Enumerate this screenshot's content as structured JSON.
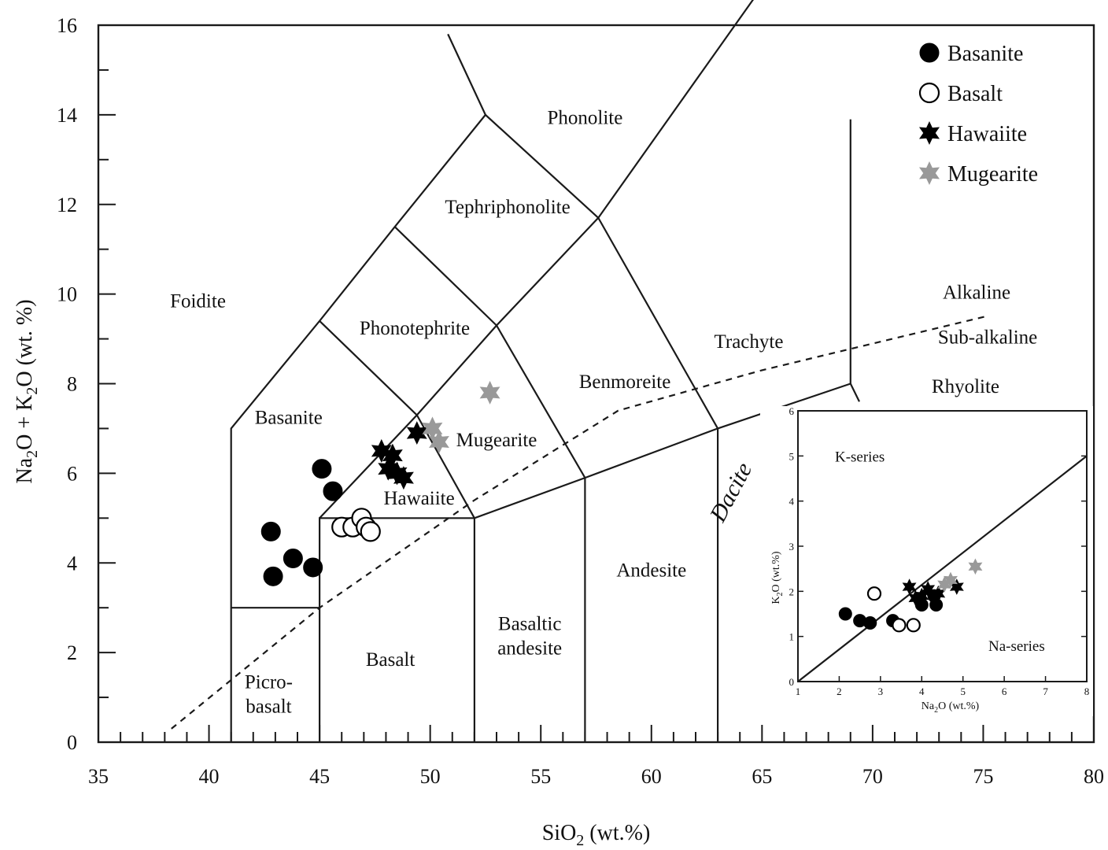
{
  "chart_data": [
    {
      "type": "scatter",
      "title": "",
      "xlabel": "SiO",
      "xlabel_sub": "2",
      "xlabel_unit": " (wt.%)",
      "ylabel_parts": [
        "Na",
        "2",
        "O + K",
        "2",
        "O (wt. %)"
      ],
      "xlim": [
        35,
        80
      ],
      "ylim": [
        0,
        16
      ],
      "x_ticks": [
        35,
        40,
        45,
        50,
        55,
        60,
        65,
        70,
        75,
        80
      ],
      "y_ticks": [
        0,
        2,
        4,
        6,
        8,
        10,
        12,
        14,
        16
      ],
      "grid": false,
      "legend_position": "top-right",
      "fields": [
        {
          "key": "foidite",
          "lines": [
            "Foidite"
          ],
          "x": 39.5,
          "y": 9.7
        },
        {
          "key": "basanite",
          "lines": [
            "Basanite"
          ],
          "x": 43.6,
          "y": 7.1
        },
        {
          "key": "phonotephrite",
          "lines": [
            "Phonotephrite"
          ],
          "x": 49.3,
          "y": 9.1
        },
        {
          "key": "tephriphonolite",
          "lines": [
            "Tephriphonolite"
          ],
          "x": 53.5,
          "y": 11.8
        },
        {
          "key": "phonolite",
          "lines": [
            "Phonolite"
          ],
          "x": 57.0,
          "y": 13.8
        },
        {
          "key": "benmoreite",
          "lines": [
            "Benmoreite"
          ],
          "x": 58.8,
          "y": 7.9
        },
        {
          "key": "trachyte",
          "lines": [
            "Trachyte"
          ],
          "x": 64.4,
          "y": 8.8
        },
        {
          "key": "mugearite",
          "lines": [
            "Mugearite"
          ],
          "x": 53.0,
          "y": 6.6
        },
        {
          "key": "hawaiite",
          "lines": [
            "Hawaiite"
          ],
          "x": 49.5,
          "y": 5.3
        },
        {
          "key": "picrobasalt",
          "lines": [
            "Picro-",
            "basalt"
          ],
          "x": 42.7,
          "y": 1.2
        },
        {
          "key": "basalt",
          "lines": [
            "Basalt"
          ],
          "x": 48.2,
          "y": 1.7
        },
        {
          "key": "basaltic_andesite",
          "lines": [
            "Basaltic",
            "andesite"
          ],
          "x": 54.5,
          "y": 2.5
        },
        {
          "key": "andesite",
          "lines": [
            "Andesite"
          ],
          "x": 60.0,
          "y": 3.7
        },
        {
          "key": "rhyolite",
          "lines": [
            "Rhyolite"
          ],
          "x": 74.2,
          "y": 7.8
        },
        {
          "key": "alkaline",
          "lines": [
            "Alkaline"
          ],
          "x": 74.7,
          "y": 9.9
        },
        {
          "key": "subalkaline",
          "lines": [
            "Sub-alkaline"
          ],
          "x": 75.2,
          "y": 8.9
        }
      ],
      "dacite_label": {
        "text": "Dacite",
        "x": 63.9,
        "y": 5.5
      },
      "boundaries": [
        [
          [
            41,
            0
          ],
          [
            41,
            7
          ],
          [
            45,
            9.4
          ],
          [
            48.4,
            11.5
          ],
          [
            52.5,
            14
          ],
          [
            57.6,
            11.7
          ],
          [
            63,
            7
          ],
          [
            63,
            0
          ]
        ],
        [
          [
            41,
            3
          ],
          [
            45,
            3
          ]
        ],
        [
          [
            45,
            0
          ],
          [
            45,
            5
          ],
          [
            52,
            5
          ],
          [
            52,
            0
          ]
        ],
        [
          [
            45,
            5
          ],
          [
            49.4,
            7.3
          ],
          [
            53,
            9.3
          ],
          [
            57.6,
            11.7
          ]
        ],
        [
          [
            45,
            9.4
          ],
          [
            49.4,
            7.3
          ],
          [
            52,
            5
          ]
        ],
        [
          [
            48.4,
            11.5
          ],
          [
            53,
            9.3
          ],
          [
            57,
            5.9
          ]
        ],
        [
          [
            52,
            5
          ],
          [
            57,
            5.9
          ],
          [
            63,
            7
          ],
          [
            69,
            8
          ]
        ],
        [
          [
            57,
            0
          ],
          [
            57,
            5.9
          ]
        ],
        [
          [
            69,
            8
          ],
          [
            69.4,
            7.6
          ]
        ],
        [
          [
            50.8,
            15.8
          ],
          [
            52.5,
            14
          ]
        ],
        [
          [
            57.6,
            11.7
          ],
          [
            65.5,
            17.2
          ]
        ],
        [
          [
            69,
            8
          ],
          [
            69,
            13.9
          ]
        ]
      ],
      "alkaline_divide": [
        [
          38.3,
          0.3
        ],
        [
          45,
          3
        ],
        [
          52,
          5.4
        ],
        [
          58.5,
          7.4
        ],
        [
          65,
          8.3
        ],
        [
          75.1,
          9.5
        ]
      ],
      "series": [
        {
          "name": "Basanite",
          "marker": "filled-circle",
          "color": "#000000",
          "x": [
            42.8,
            43.8,
            44.7,
            42.9,
            45.1,
            45.6
          ],
          "y": [
            4.7,
            4.1,
            3.9,
            3.7,
            6.1,
            5.6
          ]
        },
        {
          "name": "Basalt",
          "marker": "open-circle",
          "color": "#000000",
          "x": [
            46.0,
            46.5,
            46.9,
            47.1,
            47.3
          ],
          "y": [
            4.8,
            4.8,
            5.0,
            4.8,
            4.7
          ]
        },
        {
          "name": "Hawaiite",
          "marker": "star",
          "color": "#000000",
          "x": [
            47.8,
            48.3,
            48.1,
            48.5,
            48.8,
            49.4
          ],
          "y": [
            6.5,
            6.4,
            6.1,
            6.0,
            5.9,
            6.9
          ]
        },
        {
          "name": "Mugearite",
          "marker": "star",
          "color": "#999999",
          "x": [
            50.1,
            50.4,
            52.7
          ],
          "y": [
            7.0,
            6.7,
            7.8
          ]
        }
      ]
    },
    {
      "type": "scatter",
      "title": "",
      "xlabel": "Na",
      "xlabel_sub": "2",
      "xlabel_unit": "O (wt.%)",
      "ylabel": "K",
      "ylabel_sub": "2",
      "ylabel_unit": "O (wt.%)",
      "xlim": [
        1,
        8
      ],
      "ylim": [
        0,
        6
      ],
      "x_ticks": [
        1,
        2,
        3,
        4,
        5,
        6,
        7,
        8
      ],
      "y_ticks": [
        0,
        1,
        2,
        3,
        4,
        5,
        6
      ],
      "grid": false,
      "region_labels": [
        {
          "text": "K-series",
          "x": 2.5,
          "y": 5.0
        },
        {
          "text": "Na-series",
          "x": 6.3,
          "y": 0.8
        }
      ],
      "divide_line": [
        [
          1,
          0
        ],
        [
          8,
          5
        ]
      ],
      "series": [
        {
          "name": "Basanite",
          "marker": "filled-circle",
          "x": [
            2.15,
            2.5,
            2.75,
            3.3,
            4.0,
            4.3,
            4.35
          ],
          "y": [
            1.5,
            1.35,
            1.3,
            1.35,
            1.7,
            1.9,
            1.7
          ]
        },
        {
          "name": "Basalt",
          "marker": "open-circle",
          "x": [
            2.85,
            3.45,
            3.8
          ],
          "y": [
            1.95,
            1.25,
            1.25
          ]
        },
        {
          "name": "Hawaiite",
          "marker": "star",
          "x": [
            3.7,
            3.85,
            4.0,
            4.15,
            4.4,
            4.85
          ],
          "y": [
            2.1,
            1.85,
            1.9,
            2.05,
            1.95,
            2.1
          ]
        },
        {
          "name": "Mugearite",
          "marker": "star",
          "x": [
            4.55,
            4.7,
            5.3
          ],
          "y": [
            2.15,
            2.25,
            2.55
          ]
        }
      ]
    }
  ]
}
